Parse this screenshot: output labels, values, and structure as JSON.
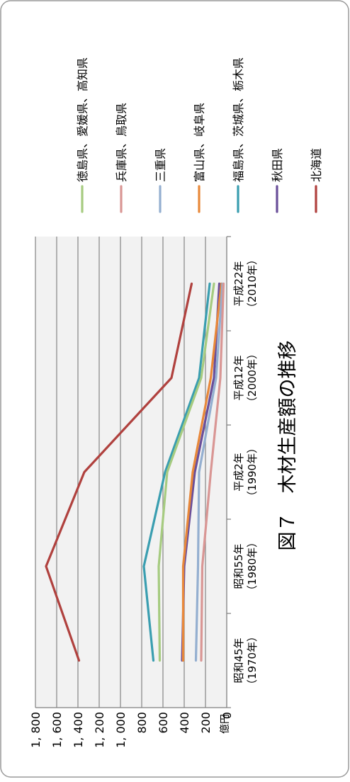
{
  "chart_data": {
    "type": "line",
    "title": "図７　木材生産額の推移",
    "unit_label": "億円",
    "ylim": [
      0,
      1800
    ],
    "yticks": [
      0,
      200,
      400,
      600,
      800,
      1000,
      1200,
      1400,
      1600,
      1800
    ],
    "ytick_labels": [
      "0",
      "200",
      "400",
      "600",
      "800",
      "1, 000",
      "1, 200",
      "1, 400",
      "1, 600",
      "1, 800"
    ],
    "categories": [
      {
        "era": "昭和45年",
        "year": "（1970年）"
      },
      {
        "era": "昭和55年",
        "year": "（1980年）"
      },
      {
        "era": "平成2年",
        "year": "（1990年）"
      },
      {
        "era": "平成12年",
        "year": "（2000年）"
      },
      {
        "era": "平成22年",
        "year": "（2010年）"
      }
    ],
    "grid": true,
    "legend_position": "right",
    "series": [
      {
        "name": "北海道",
        "color": "#b0413e",
        "values": [
          1390,
          1700,
          1340,
          520,
          330
        ]
      },
      {
        "name": "秋田県",
        "color": "#6a4f9a",
        "values": [
          420,
          400,
          300,
          120,
          70
        ]
      },
      {
        "name": "福島県、茨城県、栃木県",
        "color": "#3a9eb0",
        "values": [
          690,
          780,
          580,
          260,
          160
        ]
      },
      {
        "name": "富山県、岐阜県",
        "color": "#e8883a",
        "values": [
          410,
          410,
          320,
          150,
          50
        ]
      },
      {
        "name": "三重県",
        "color": "#94afd0",
        "values": [
          290,
          270,
          260,
          100,
          40
        ]
      },
      {
        "name": "兵庫県、鳥取県",
        "color": "#d99694",
        "values": [
          240,
          230,
          150,
          60,
          30
        ]
      },
      {
        "name": "徳島県、愛媛県、高知県",
        "color": "#a6cb80",
        "values": [
          630,
          640,
          560,
          240,
          120
        ]
      }
    ]
  }
}
